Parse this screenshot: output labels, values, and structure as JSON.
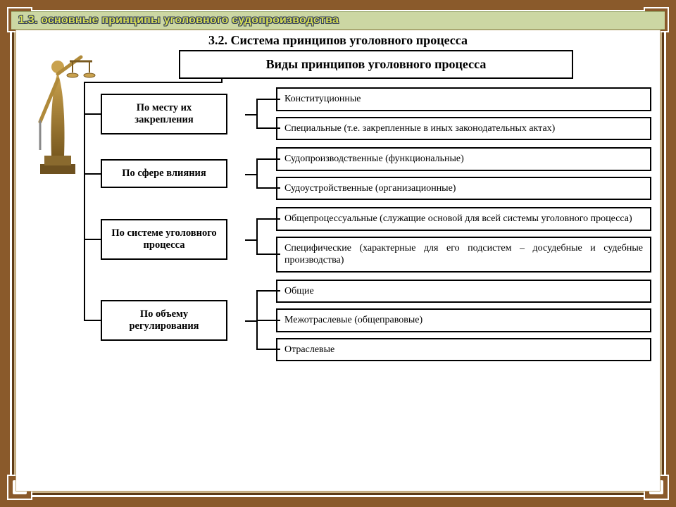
{
  "banner": "1.3. основные принципы уголовного судопроизводства",
  "section_title": "3.2. Система принципов уголовного процесса",
  "root": "Виды принципов уголовного процесса",
  "groups": [
    {
      "category": "По месту их закрепления",
      "items": [
        "Конституционные",
        "Специальные (т.е. закрепленные в иных законодательных актах)"
      ]
    },
    {
      "category": "По сфере влияния",
      "items": [
        "Судопроизводственные (функциональные)",
        "Судоустройственные (организационные)"
      ]
    },
    {
      "category": "По системе уголовного процесса",
      "items": [
        "Общепроцессуальные (служащие основой для всей системы уголовного процесса)",
        "Специфические (характерные для его подсистем – досудебные и судебные производства)"
      ],
      "justify": true
    },
    {
      "category": "По объему регулирования",
      "items": [
        "Общие",
        "Межотраслевые (общеправовые)",
        "Отраслевые"
      ]
    }
  ],
  "colors": {
    "frame": "#8a5a2b",
    "frame_inner": "#5e3b16",
    "page_bg": "#ffffff",
    "outer_bg": "#c9b38a",
    "banner_bg": "#ccd7a3",
    "banner_text": "#d9e055",
    "banner_outline": "#2e3a5a",
    "box_border": "#000000"
  },
  "fonts": {
    "body_family": "Times New Roman",
    "banner_family": "Arial",
    "section_title_pt": 18,
    "root_pt": 18,
    "category_pt": 14.5,
    "item_pt": 14
  },
  "decorative": {
    "statue": "lady-justice-figure-with-scales"
  }
}
